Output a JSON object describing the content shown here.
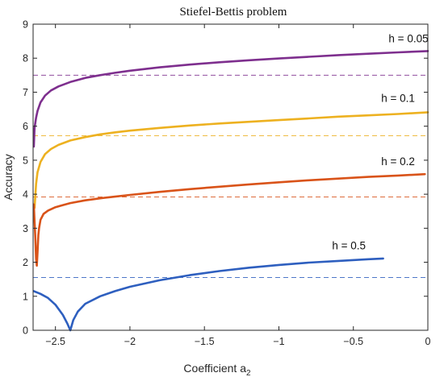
{
  "chart_data": {
    "type": "line",
    "title": "Stiefel-Bettis problem",
    "xlabel": "Coefficient a",
    "xlabel_subscript": "2",
    "ylabel": "Accuracy",
    "xlim": [
      -2.65,
      0
    ],
    "ylim": [
      0,
      9
    ],
    "xticks": [
      -2.5,
      -2,
      -1.5,
      -1,
      -0.5,
      0
    ],
    "xtick_labels": [
      "−2.5",
      "−2",
      "−1.5",
      "−1",
      "−0.5",
      "0"
    ],
    "yticks": [
      0,
      1,
      2,
      3,
      4,
      5,
      6,
      7,
      8,
      9
    ],
    "ytick_labels": [
      "0",
      "1",
      "2",
      "3",
      "4",
      "5",
      "6",
      "7",
      "8",
      "9"
    ],
    "grid": false,
    "legend": "none",
    "series": [
      {
        "name": "h = 0.05",
        "color": "#7e2f8e",
        "reference_level": 7.5,
        "x": [
          -2.645,
          -2.64,
          -2.63,
          -2.62,
          -2.6,
          -2.57,
          -2.53,
          -2.48,
          -2.4,
          -2.3,
          -2.2,
          -2.1,
          -2.0,
          -1.8,
          -1.6,
          -1.4,
          -1.2,
          -1.0,
          -0.8,
          -0.6,
          -0.4,
          -0.2,
          0.0
        ],
        "y": [
          5.4,
          5.95,
          6.25,
          6.45,
          6.7,
          6.9,
          7.05,
          7.17,
          7.3,
          7.42,
          7.5,
          7.57,
          7.63,
          7.73,
          7.81,
          7.88,
          7.94,
          7.99,
          8.04,
          8.09,
          8.13,
          8.17,
          8.21
        ]
      },
      {
        "name": "h = 0.1",
        "color": "#edb120",
        "reference_level": 5.72,
        "x": [
          -2.64,
          -2.63,
          -2.62,
          -2.6,
          -2.57,
          -2.53,
          -2.48,
          -2.4,
          -2.3,
          -2.2,
          -2.1,
          -2.0,
          -1.8,
          -1.6,
          -1.4,
          -1.2,
          -1.0,
          -0.8,
          -0.6,
          -0.4,
          -0.2,
          0.0
        ],
        "y": [
          3.6,
          4.3,
          4.65,
          4.95,
          5.18,
          5.33,
          5.45,
          5.58,
          5.68,
          5.76,
          5.82,
          5.87,
          5.95,
          6.02,
          6.08,
          6.13,
          6.18,
          6.23,
          6.28,
          6.32,
          6.36,
          6.41
        ]
      },
      {
        "name": "h = 0.2",
        "color": "#d95319",
        "reference_level": 3.92,
        "x": [
          -2.645,
          -2.64,
          -2.635,
          -2.63,
          -2.625,
          -2.62,
          -2.615,
          -2.61,
          -2.6,
          -2.58,
          -2.55,
          -2.5,
          -2.45,
          -2.4,
          -2.3,
          -2.2,
          -2.1,
          -2.0,
          -1.8,
          -1.6,
          -1.4,
          -1.2,
          -1.0,
          -0.8,
          -0.6,
          -0.4,
          -0.2,
          -0.02
        ],
        "y": [
          3.7,
          3.2,
          2.7,
          2.1,
          1.9,
          2.3,
          2.8,
          3.0,
          3.25,
          3.42,
          3.52,
          3.62,
          3.68,
          3.74,
          3.82,
          3.88,
          3.93,
          3.98,
          4.07,
          4.15,
          4.22,
          4.29,
          4.35,
          4.41,
          4.46,
          4.51,
          4.55,
          4.59
        ]
      },
      {
        "name": "h = 0.5",
        "color": "#2e5fbf",
        "reference_level": 1.55,
        "x": [
          -2.645,
          -2.6,
          -2.55,
          -2.5,
          -2.45,
          -2.42,
          -2.4,
          -2.38,
          -2.35,
          -2.3,
          -2.2,
          -2.1,
          -2.0,
          -1.8,
          -1.6,
          -1.4,
          -1.2,
          -1.0,
          -0.8,
          -0.6,
          -0.4,
          -0.3
        ],
        "y": [
          1.15,
          1.07,
          0.95,
          0.75,
          0.45,
          0.2,
          0.0,
          0.3,
          0.55,
          0.78,
          1.0,
          1.15,
          1.28,
          1.47,
          1.62,
          1.74,
          1.84,
          1.92,
          1.99,
          2.04,
          2.09,
          2.11
        ]
      }
    ],
    "annotations": [
      {
        "text": "h = 0.05",
        "x": -0.13,
        "y": 8.47
      },
      {
        "text": "h = 0.1",
        "x": -0.2,
        "y": 6.72
      },
      {
        "text": "h = 0.2",
        "x": -0.2,
        "y": 4.86
      },
      {
        "text": "h = 0.5",
        "x": -0.53,
        "y": 2.38
      }
    ]
  }
}
